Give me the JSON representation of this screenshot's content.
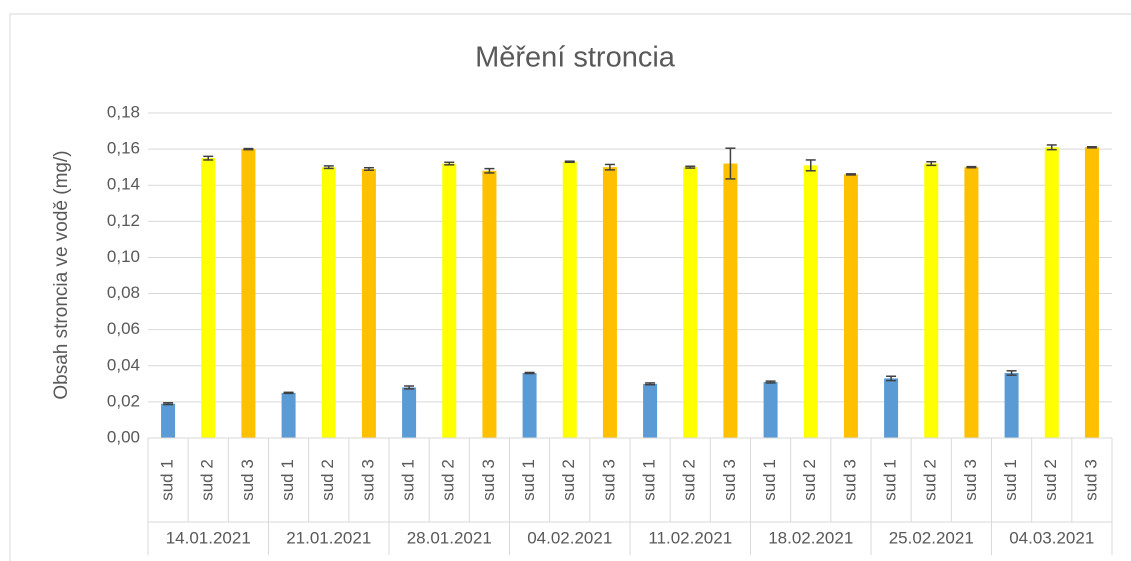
{
  "chart_data": {
    "type": "bar",
    "title": "Měření stroncia",
    "y_label": "Obsah stroncia ve vodě (mg/)",
    "colors": [
      "#5b9bd5",
      "#ffff00",
      "#ffc000"
    ],
    "groups": [
      {
        "label": "14.01.2021",
        "categories": [
          "sud 1",
          "sud 2",
          "sud 3"
        ],
        "values": [
          0.019,
          0.155,
          0.16
        ],
        "errors": [
          0.0005,
          0.001,
          0.0003
        ]
      },
      {
        "label": "21.01.2021",
        "categories": [
          "sud 1",
          "sud 2",
          "sud 3"
        ],
        "values": [
          0.025,
          0.15,
          0.149
        ],
        "errors": [
          0.0003,
          0.0007,
          0.0007
        ]
      },
      {
        "label": "28.01.2021",
        "categories": [
          "sud 1",
          "sud 2",
          "sud 3"
        ],
        "values": [
          0.028,
          0.152,
          0.148
        ],
        "errors": [
          0.0008,
          0.0007,
          0.0012
        ]
      },
      {
        "label": "04.02.2021",
        "categories": [
          "sud 1",
          "sud 2",
          "sud 3"
        ],
        "values": [
          0.036,
          0.153,
          0.15
        ],
        "errors": [
          0.0003,
          0.0003,
          0.0015
        ]
      },
      {
        "label": "11.02.2021",
        "categories": [
          "sud 1",
          "sud 2",
          "sud 3"
        ],
        "values": [
          0.03,
          0.15,
          0.152
        ],
        "errors": [
          0.0005,
          0.0005,
          0.0085
        ]
      },
      {
        "label": "18.02.2021",
        "categories": [
          "sud 1",
          "sud 2",
          "sud 3"
        ],
        "values": [
          0.031,
          0.151,
          0.146
        ],
        "errors": [
          0.0005,
          0.003,
          0.0003
        ]
      },
      {
        "label": "25.02.2021",
        "categories": [
          "sud 1",
          "sud 2",
          "sud 3"
        ],
        "values": [
          0.033,
          0.152,
          0.15
        ],
        "errors": [
          0.0012,
          0.001,
          0.0003
        ]
      },
      {
        "label": "04.03.2021",
        "categories": [
          "sud 1",
          "sud 2",
          "sud 3"
        ],
        "values": [
          0.036,
          0.161,
          0.161
        ],
        "errors": [
          0.0012,
          0.0013,
          0.0003
        ]
      }
    ],
    "ylim": [
      0,
      0.18
    ],
    "yticks": [
      {
        "value": 0,
        "label": "0,00"
      },
      {
        "value": 0.02,
        "label": "0,02"
      },
      {
        "value": 0.04,
        "label": "0,04"
      },
      {
        "value": 0.06,
        "label": "0,06"
      },
      {
        "value": 0.08,
        "label": "0,08"
      },
      {
        "value": 0.1,
        "label": "0,10"
      },
      {
        "value": 0.12,
        "label": "0,12"
      },
      {
        "value": 0.14,
        "label": "0,14"
      },
      {
        "value": 0.16,
        "label": "0,16"
      },
      {
        "value": 0.18,
        "label": "0,18"
      }
    ],
    "grid": true
  }
}
